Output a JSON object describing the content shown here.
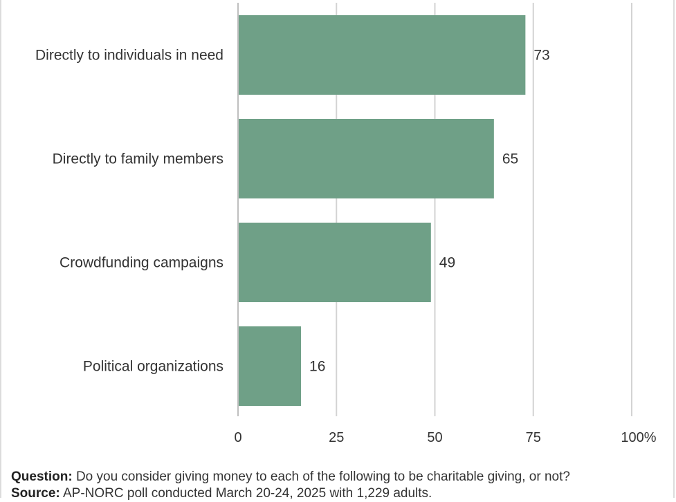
{
  "colors": {
    "bar": "#6fa087",
    "grid": "#d3d3d3",
    "axis": "#bfbfbf",
    "text": "#333333"
  },
  "chart_data": {
    "type": "bar",
    "orientation": "horizontal",
    "categories": [
      "Directly to individuals in need",
      "Directly to family members",
      "Crowdfunding campaigns",
      "Political organizations"
    ],
    "values": [
      73,
      65,
      49,
      16
    ],
    "xlim": [
      0,
      100
    ],
    "xticks": [
      "0",
      "25",
      "50",
      "75",
      "100%"
    ],
    "tick_values": [
      0,
      25,
      50,
      75,
      100
    ],
    "grid": true
  },
  "footer": {
    "question_label": "Question:",
    "question_text": "Do you consider giving money to each of the following to be charitable giving, or not?",
    "source_label": "Source:",
    "source_text": "AP-NORC poll conducted March 20-24, 2025 with 1,229 adults."
  }
}
